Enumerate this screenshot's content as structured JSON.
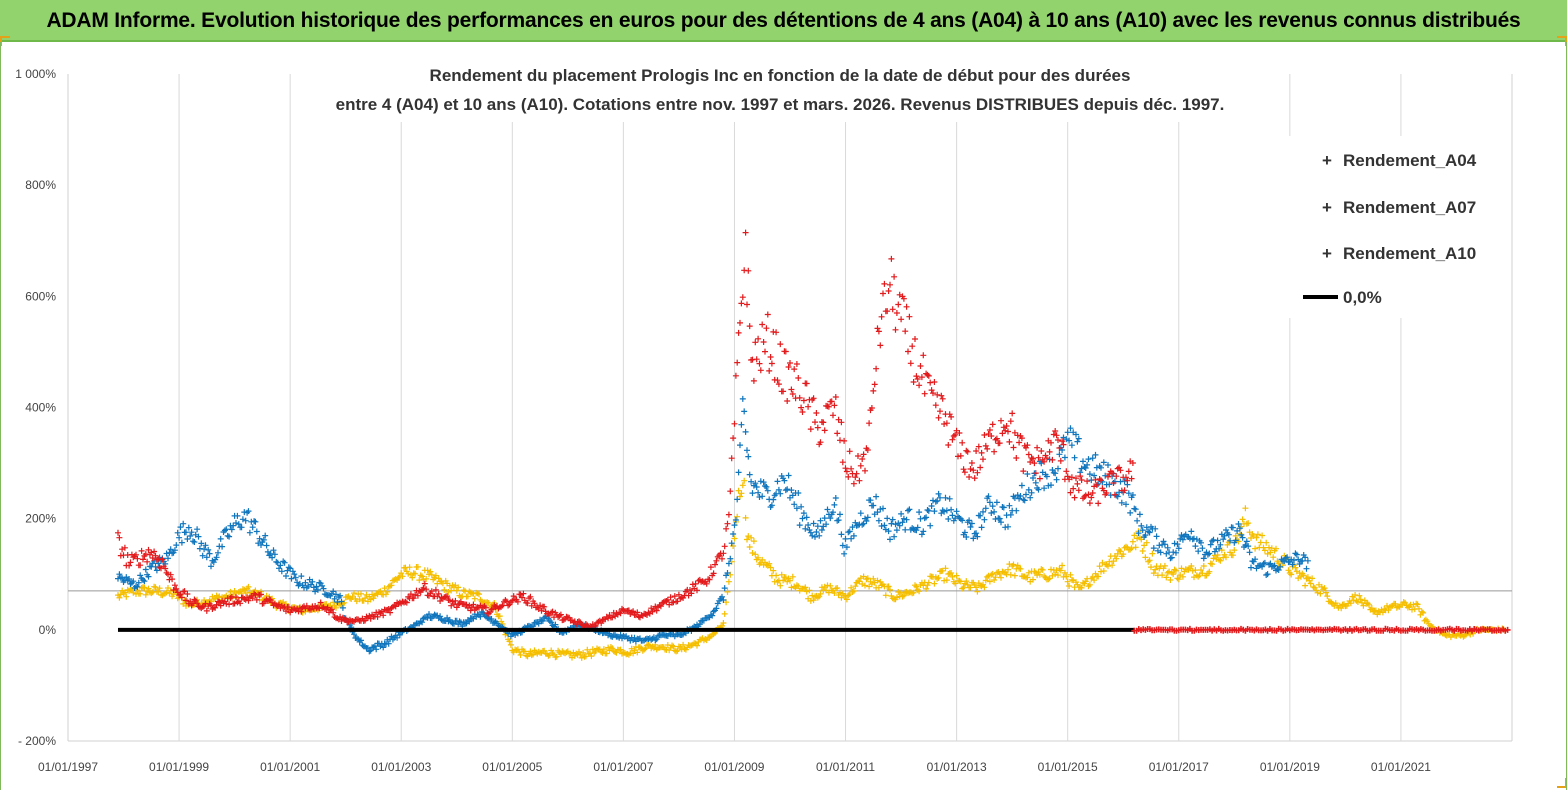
{
  "header": {
    "title": "ADAM Informe. Evolution historique des performances en euros pour des détentions de 4 ans (A04) à 10 ans (A10) avec les revenus connus distribués"
  },
  "chart_data": {
    "type": "scatter",
    "title_line1": "Rendement du placement Prologis Inc en fonction de la date de début pour des durées",
    "title_line2": "entre 4 (A04) et 10 ans (A10). Cotations entre nov. 1997 et mars. 2026. Revenus DISTRIBUES depuis déc. 1997.",
    "xlabel": "",
    "ylabel": "",
    "x_range": [
      "01/01/1997",
      "01/01/2023"
    ],
    "ylim": [
      -200,
      1000
    ],
    "y_ticks": [
      -200,
      0,
      200,
      400,
      600,
      800,
      1000
    ],
    "y_tick_labels": [
      "- 200%",
      "0%",
      "200%",
      "400%",
      "600%",
      "800%",
      "1 000%"
    ],
    "x_tick_labels": [
      "01/01/1997",
      "01/01/1999",
      "01/01/2001",
      "01/01/2003",
      "01/01/2005",
      "01/01/2007",
      "01/01/2009",
      "01/01/2011",
      "01/01/2013",
      "01/01/2015",
      "01/01/2017",
      "01/01/2019",
      "01/01/2021"
    ],
    "grid": "vertical",
    "legend_position": "top-right",
    "series": [
      {
        "name": "Rendement_A04",
        "color": "#f5bf00",
        "marker": "plus",
        "points": [
          [
            1997.9,
            60
          ],
          [
            1998.2,
            70
          ],
          [
            1998.6,
            70
          ],
          [
            1998.9,
            65
          ],
          [
            1999.2,
            45
          ],
          [
            1999.6,
            55
          ],
          [
            1999.9,
            60
          ],
          [
            2000.2,
            70
          ],
          [
            2000.5,
            60
          ],
          [
            2000.8,
            45
          ],
          [
            2001.2,
            35
          ],
          [
            2001.5,
            40
          ],
          [
            2001.8,
            45
          ],
          [
            2002.1,
            60
          ],
          [
            2002.4,
            55
          ],
          [
            2002.7,
            70
          ],
          [
            2003.0,
            100
          ],
          [
            2003.2,
            105
          ],
          [
            2003.5,
            95
          ],
          [
            2003.8,
            80
          ],
          [
            2004.1,
            65
          ],
          [
            2004.4,
            60
          ],
          [
            2004.7,
            40
          ],
          [
            2005.0,
            -35
          ],
          [
            2005.3,
            -45
          ],
          [
            2005.6,
            -40
          ],
          [
            2005.9,
            -45
          ],
          [
            2006.2,
            -45
          ],
          [
            2006.5,
            -40
          ],
          [
            2006.8,
            -35
          ],
          [
            2007.1,
            -40
          ],
          [
            2007.4,
            -30
          ],
          [
            2007.7,
            -30
          ],
          [
            2008.0,
            -35
          ],
          [
            2008.3,
            -25
          ],
          [
            2008.6,
            -10
          ],
          [
            2008.8,
            10
          ],
          [
            2008.95,
            120
          ],
          [
            2009.05,
            220
          ],
          [
            2009.15,
            280
          ],
          [
            2009.25,
            160
          ],
          [
            2009.5,
            120
          ],
          [
            2009.8,
            90
          ],
          [
            2010.1,
            85
          ],
          [
            2010.4,
            60
          ],
          [
            2010.7,
            75
          ],
          [
            2011.0,
            60
          ],
          [
            2011.3,
            90
          ],
          [
            2011.6,
            80
          ],
          [
            2011.9,
            60
          ],
          [
            2012.2,
            70
          ],
          [
            2012.5,
            85
          ],
          [
            2012.8,
            100
          ],
          [
            2013.1,
            80
          ],
          [
            2013.4,
            75
          ],
          [
            2013.7,
            100
          ],
          [
            2014.0,
            110
          ],
          [
            2014.3,
            95
          ],
          [
            2014.6,
            100
          ],
          [
            2014.9,
            105
          ],
          [
            2015.2,
            70
          ],
          [
            2015.5,
            100
          ],
          [
            2015.8,
            130
          ],
          [
            2016.1,
            150
          ],
          [
            2016.3,
            165
          ],
          [
            2016.6,
            110
          ],
          [
            2016.9,
            100
          ],
          [
            2017.2,
            105
          ],
          [
            2017.5,
            110
          ],
          [
            2017.8,
            140
          ],
          [
            2018.0,
            150
          ],
          [
            2018.2,
            200
          ],
          [
            2018.4,
            160
          ],
          [
            2018.7,
            140
          ],
          [
            2019.0,
            110
          ],
          [
            2019.3,
            90
          ],
          [
            2019.6,
            70
          ],
          [
            2019.9,
            40
          ],
          [
            2020.2,
            60
          ],
          [
            2020.5,
            30
          ],
          [
            2020.8,
            40
          ],
          [
            2021.1,
            45
          ],
          [
            2021.3,
            40
          ],
          [
            2021.5,
            10
          ],
          [
            2021.8,
            -10
          ],
          [
            2022.1,
            -10
          ],
          [
            2022.4,
            0
          ],
          [
            2022.7,
            0
          ],
          [
            2022.9,
            0
          ]
        ]
      },
      {
        "name": "Rendement_A07",
        "color": "#0f75bd",
        "marker": "plus",
        "points": [
          [
            1997.9,
            95
          ],
          [
            1998.2,
            80
          ],
          [
            1998.5,
            110
          ],
          [
            1998.8,
            130
          ],
          [
            1999.0,
            170
          ],
          [
            1999.2,
            185
          ],
          [
            1999.4,
            150
          ],
          [
            1999.6,
            125
          ],
          [
            1999.8,
            160
          ],
          [
            2000.0,
            190
          ],
          [
            2000.2,
            205
          ],
          [
            2000.4,
            175
          ],
          [
            2000.7,
            130
          ],
          [
            2000.9,
            110
          ],
          [
            2001.1,
            90
          ],
          [
            2001.4,
            80
          ],
          [
            2001.7,
            70
          ],
          [
            2001.9,
            55
          ],
          [
            2002.0,
            20
          ],
          [
            2002.2,
            -15
          ],
          [
            2002.4,
            -35
          ],
          [
            2002.7,
            -25
          ],
          [
            2003.0,
            -5
          ],
          [
            2003.2,
            5
          ],
          [
            2003.5,
            25
          ],
          [
            2003.8,
            20
          ],
          [
            2004.1,
            10
          ],
          [
            2004.4,
            30
          ],
          [
            2004.7,
            15
          ],
          [
            2005.0,
            -10
          ],
          [
            2005.3,
            5
          ],
          [
            2005.6,
            20
          ],
          [
            2005.9,
            -5
          ],
          [
            2006.2,
            10
          ],
          [
            2006.5,
            0
          ],
          [
            2006.8,
            -10
          ],
          [
            2007.1,
            -15
          ],
          [
            2007.4,
            -20
          ],
          [
            2007.7,
            -10
          ],
          [
            2008.0,
            -10
          ],
          [
            2008.3,
            5
          ],
          [
            2008.6,
            30
          ],
          [
            2008.8,
            60
          ],
          [
            2008.95,
            150
          ],
          [
            2009.05,
            220
          ],
          [
            2009.15,
            400
          ],
          [
            2009.3,
            260
          ],
          [
            2009.6,
            240
          ],
          [
            2009.9,
            270
          ],
          [
            2010.2,
            210
          ],
          [
            2010.5,
            170
          ],
          [
            2010.8,
            230
          ],
          [
            2011.0,
            150
          ],
          [
            2011.2,
            190
          ],
          [
            2011.5,
            230
          ],
          [
            2011.8,
            180
          ],
          [
            2012.1,
            200
          ],
          [
            2012.4,
            190
          ],
          [
            2012.7,
            230
          ],
          [
            2013.0,
            200
          ],
          [
            2013.3,
            170
          ],
          [
            2013.6,
            230
          ],
          [
            2013.9,
            200
          ],
          [
            2014.2,
            250
          ],
          [
            2014.5,
            280
          ],
          [
            2014.8,
            290
          ],
          [
            2015.0,
            340
          ],
          [
            2015.3,
            300
          ],
          [
            2015.6,
            280
          ],
          [
            2015.9,
            260
          ],
          [
            2016.1,
            240
          ],
          [
            2016.3,
            190
          ],
          [
            2016.6,
            160
          ],
          [
            2016.9,
            140
          ],
          [
            2017.2,
            180
          ],
          [
            2017.5,
            140
          ],
          [
            2017.8,
            160
          ],
          [
            2018.1,
            180
          ],
          [
            2018.3,
            120
          ],
          [
            2018.6,
            110
          ],
          [
            2018.9,
            120
          ],
          [
            2019.2,
            130
          ],
          [
            2019.35,
            110
          ]
        ]
      },
      {
        "name": "Rendement_A10",
        "color": "#e31a1c",
        "marker": "plus",
        "points": [
          [
            1997.9,
            160
          ],
          [
            1998.1,
            120
          ],
          [
            1998.3,
            130
          ],
          [
            1998.5,
            140
          ],
          [
            1998.7,
            120
          ],
          [
            1998.9,
            80
          ],
          [
            1999.2,
            50
          ],
          [
            1999.5,
            40
          ],
          [
            1999.8,
            50
          ],
          [
            2000.1,
            55
          ],
          [
            2000.4,
            60
          ],
          [
            2000.7,
            45
          ],
          [
            2001.0,
            35
          ],
          [
            2001.3,
            40
          ],
          [
            2001.6,
            45
          ],
          [
            2001.9,
            20
          ],
          [
            2002.2,
            15
          ],
          [
            2002.5,
            25
          ],
          [
            2002.8,
            35
          ],
          [
            2003.1,
            55
          ],
          [
            2003.4,
            75
          ],
          [
            2003.7,
            60
          ],
          [
            2004.0,
            45
          ],
          [
            2004.3,
            40
          ],
          [
            2004.6,
            35
          ],
          [
            2004.9,
            50
          ],
          [
            2005.2,
            60
          ],
          [
            2005.5,
            40
          ],
          [
            2005.8,
            25
          ],
          [
            2006.1,
            15
          ],
          [
            2006.4,
            5
          ],
          [
            2006.7,
            20
          ],
          [
            2007.0,
            35
          ],
          [
            2007.3,
            25
          ],
          [
            2007.6,
            40
          ],
          [
            2007.9,
            55
          ],
          [
            2008.2,
            70
          ],
          [
            2008.5,
            90
          ],
          [
            2008.8,
            140
          ],
          [
            2008.9,
            200
          ],
          [
            2009.0,
            380
          ],
          [
            2009.1,
            550
          ],
          [
            2009.2,
            700
          ],
          [
            2009.3,
            480
          ],
          [
            2009.6,
            520
          ],
          [
            2009.9,
            460
          ],
          [
            2010.2,
            430
          ],
          [
            2010.5,
            360
          ],
          [
            2010.8,
            400
          ],
          [
            2011.0,
            300
          ],
          [
            2011.2,
            280
          ],
          [
            2011.4,
            320
          ],
          [
            2011.6,
            540
          ],
          [
            2011.8,
            620
          ],
          [
            2012.0,
            560
          ],
          [
            2012.2,
            500
          ],
          [
            2012.5,
            420
          ],
          [
            2012.8,
            380
          ],
          [
            2013.0,
            330
          ],
          [
            2013.3,
            290
          ],
          [
            2013.6,
            340
          ],
          [
            2013.9,
            380
          ],
          [
            2014.2,
            310
          ],
          [
            2014.5,
            300
          ],
          [
            2014.8,
            340
          ],
          [
            2015.1,
            260
          ],
          [
            2015.4,
            240
          ],
          [
            2015.7,
            260
          ],
          [
            2016.0,
            270
          ],
          [
            2016.2,
            290
          ]
        ]
      }
    ],
    "zero_line": {
      "name": "0,0%",
      "color": "#000000",
      "x_start": 1997.9,
      "x_end": 2016.2,
      "value": 0
    },
    "tail_series": {
      "name": "Rendement_A10",
      "color": "#e31a1c",
      "x_start": 2016.2,
      "x_end": 2022.95,
      "value": 0
    },
    "reference_line": {
      "color": "#999999",
      "value": 70
    }
  }
}
